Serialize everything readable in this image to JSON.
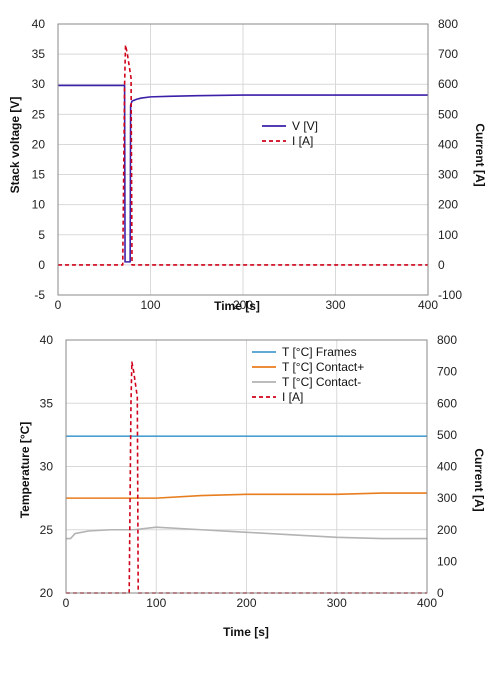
{
  "chart_data": [
    {
      "type": "line",
      "xlabel": "Time [s]",
      "ylabel": "Stack voltage [V]",
      "y2label": "Current [A]",
      "xlim": [
        0,
        400
      ],
      "ylim": [
        -5,
        40
      ],
      "y2lim": [
        -100,
        800
      ],
      "xticks": [
        0,
        100,
        200,
        300,
        400
      ],
      "yticks": [
        -5,
        0,
        5,
        10,
        15,
        20,
        25,
        30,
        35,
        40
      ],
      "y2ticks": [
        -100,
        0,
        100,
        200,
        300,
        400,
        500,
        600,
        700,
        800
      ],
      "grid": true,
      "legend_position": "center-right",
      "series": [
        {
          "name": "V [V]",
          "axis": "left",
          "color": "#3b1fa8",
          "style": "solid",
          "x": [
            0,
            72,
            72.5,
            78,
            78.5,
            80,
            85,
            90,
            100,
            120,
            150,
            200,
            300,
            400
          ],
          "y": [
            29.8,
            29.8,
            0.5,
            0.5,
            26.5,
            27.2,
            27.5,
            27.7,
            27.9,
            28.0,
            28.1,
            28.2,
            28.2,
            28.2
          ]
        },
        {
          "name": "I [A]",
          "axis": "right",
          "color": "#d0021b",
          "style": "dashed",
          "x": [
            0,
            70,
            72,
            73,
            75,
            77,
            79,
            80,
            82,
            400
          ],
          "y": [
            0,
            0,
            600,
            730,
            700,
            660,
            620,
            0,
            0,
            0
          ]
        }
      ]
    },
    {
      "type": "line",
      "xlabel": "Time [s]",
      "ylabel": "Temperature [°C]",
      "y2label": "Current [A]",
      "xlim": [
        0,
        400
      ],
      "ylim": [
        20,
        40
      ],
      "y2lim": [
        0,
        800
      ],
      "xticks": [
        0,
        100,
        200,
        300,
        400
      ],
      "yticks": [
        20,
        25,
        30,
        35,
        40
      ],
      "y2ticks": [
        0,
        100,
        200,
        300,
        400,
        500,
        600,
        700,
        800
      ],
      "grid": true,
      "legend_position": "top-right",
      "series": [
        {
          "name": "T [°C] Frames",
          "axis": "left",
          "color": "#4a9fd0",
          "style": "solid",
          "x": [
            0,
            50,
            100,
            150,
            200,
            250,
            300,
            350,
            400
          ],
          "y": [
            32.4,
            32.4,
            32.4,
            32.4,
            32.4,
            32.4,
            32.4,
            32.4,
            32.4
          ]
        },
        {
          "name": "T [°C] Contact+",
          "axis": "left",
          "color": "#e87d1e",
          "style": "solid",
          "x": [
            0,
            50,
            100,
            150,
            200,
            250,
            300,
            350,
            400
          ],
          "y": [
            27.5,
            27.5,
            27.5,
            27.7,
            27.8,
            27.8,
            27.8,
            27.9,
            27.9
          ]
        },
        {
          "name": "T [°C] Contact-",
          "axis": "left",
          "color": "#b3b3b3",
          "style": "solid",
          "x": [
            0,
            5,
            10,
            25,
            50,
            75,
            100,
            150,
            200,
            250,
            300,
            350,
            400
          ],
          "y": [
            24.3,
            24.3,
            24.7,
            24.9,
            25.0,
            25.0,
            25.2,
            25.0,
            24.8,
            24.6,
            24.4,
            24.3,
            24.3
          ]
        },
        {
          "name": "I [A]",
          "axis": "right",
          "color": "#d0021b",
          "style": "dashed",
          "x": [
            0,
            70,
            72,
            73,
            75,
            77,
            79,
            80,
            82,
            400
          ],
          "y": [
            0,
            0,
            600,
            730,
            700,
            660,
            620,
            0,
            0,
            0
          ]
        }
      ]
    }
  ]
}
